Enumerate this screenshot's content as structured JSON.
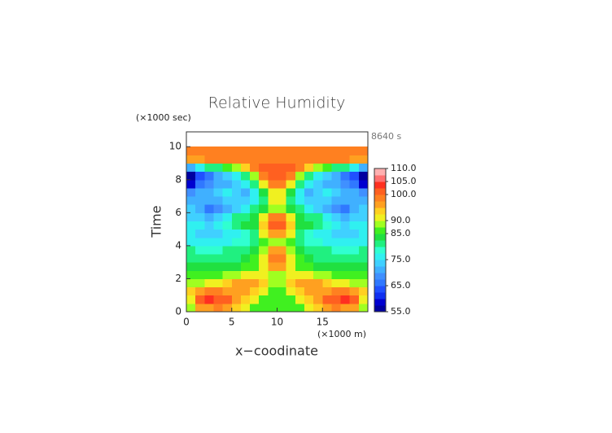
{
  "chart_data": {
    "type": "contour",
    "title": "Relative Humidity",
    "x_label": "x−coodinate",
    "y_label": "Time",
    "x_unit": "(×1000 m)",
    "y_unit": "(×1000 sec)",
    "annotation": "8640 s",
    "xlim": [
      0,
      20
    ],
    "ylim": [
      0,
      10.9
    ],
    "xticks": [
      0,
      5,
      10,
      15
    ],
    "yticks": [
      0,
      2,
      4,
      6,
      8,
      10
    ],
    "x": [
      0.5,
      1.5,
      2.5,
      3.5,
      4.5,
      5.5,
      6.5,
      7.5,
      8.5,
      9.5,
      10.5,
      11.5,
      12.5,
      13.5,
      14.5,
      15.5,
      16.5,
      17.5,
      18.5,
      19.5
    ],
    "y": [
      0.25,
      0.75,
      1.25,
      1.75,
      2.25,
      2.75,
      3.25,
      3.75,
      4.25,
      4.75,
      5.25,
      5.75,
      6.25,
      6.75,
      7.25,
      7.75,
      8.25,
      8.75,
      9.25,
      9.75
    ],
    "z": [
      [
        88,
        95,
        97,
        98,
        97,
        93,
        90,
        87,
        86,
        86,
        86,
        86,
        87,
        90,
        93,
        97,
        98,
        97,
        95,
        88
      ],
      [
        92,
        101,
        103,
        102,
        100,
        97,
        93,
        90,
        87,
        86,
        86,
        87,
        90,
        93,
        97,
        100,
        102,
        103,
        101,
        92
      ],
      [
        93,
        96,
        98,
        98,
        97,
        97,
        96,
        94,
        90,
        87,
        87,
        90,
        94,
        96,
        97,
        97,
        98,
        98,
        96,
        93
      ],
      [
        88,
        89,
        90,
        92,
        93,
        95,
        97,
        97,
        93,
        88,
        88,
        93,
        97,
        97,
        95,
        93,
        92,
        90,
        89,
        88
      ],
      [
        86,
        86,
        87,
        87,
        88,
        89,
        90,
        92,
        92,
        88,
        88,
        92,
        92,
        90,
        89,
        88,
        87,
        87,
        86,
        86
      ],
      [
        83,
        83,
        83,
        84,
        84,
        84,
        85,
        87,
        91,
        96,
        96,
        91,
        87,
        85,
        84,
        84,
        84,
        83,
        83,
        83
      ],
      [
        82,
        82,
        81,
        82,
        82,
        82,
        83,
        85,
        91,
        98,
        98,
        91,
        85,
        83,
        82,
        82,
        82,
        81,
        82,
        82
      ],
      [
        80,
        79,
        78,
        79,
        80,
        80,
        82,
        84,
        89,
        95,
        95,
        89,
        84,
        82,
        80,
        80,
        79,
        78,
        79,
        80
      ],
      [
        77,
        76,
        75,
        76,
        77,
        78,
        79,
        82,
        86,
        88,
        88,
        86,
        82,
        79,
        78,
        77,
        76,
        75,
        76,
        77
      ],
      [
        76,
        74,
        73,
        74,
        76,
        77,
        78,
        82,
        90,
        97,
        97,
        90,
        82,
        78,
        77,
        76,
        74,
        73,
        74,
        76
      ],
      [
        76,
        75,
        74,
        75,
        78,
        82,
        83,
        84,
        93,
        100,
        100,
        93,
        84,
        83,
        82,
        78,
        75,
        74,
        75,
        76
      ],
      [
        74,
        73,
        72,
        73,
        77,
        81,
        82,
        84,
        92,
        98,
        98,
        92,
        84,
        82,
        81,
        77,
        73,
        72,
        73,
        74
      ],
      [
        73,
        72,
        67,
        68,
        72,
        74,
        77,
        80,
        84,
        88,
        88,
        84,
        80,
        77,
        74,
        72,
        68,
        67,
        72,
        73
      ],
      [
        72,
        71,
        70,
        72,
        74,
        74,
        73,
        76,
        82,
        90,
        90,
        82,
        76,
        73,
        74,
        74,
        72,
        70,
        71,
        72
      ],
      [
        68,
        70,
        72,
        74,
        75,
        73,
        70,
        75,
        84,
        92,
        92,
        84,
        75,
        70,
        73,
        75,
        74,
        72,
        70,
        68
      ],
      [
        58,
        66,
        68,
        70,
        72,
        74,
        76,
        80,
        90,
        98,
        98,
        90,
        80,
        76,
        74,
        72,
        70,
        68,
        66,
        58
      ],
      [
        57,
        64,
        67,
        70,
        73,
        76,
        80,
        88,
        98,
        100,
        100,
        98,
        88,
        80,
        76,
        73,
        70,
        67,
        64,
        57
      ],
      [
        70,
        76,
        80,
        82,
        85,
        88,
        94,
        98,
        100,
        100,
        100,
        100,
        98,
        94,
        88,
        85,
        82,
        80,
        76,
        70
      ],
      [
        97,
        97,
        98,
        98,
        98,
        98,
        98,
        98,
        98,
        98,
        98,
        98,
        98,
        98,
        98,
        98,
        98,
        98,
        97,
        97
      ],
      [
        98,
        98,
        98,
        98,
        98,
        98,
        98,
        98,
        98,
        98,
        98,
        98,
        98,
        98,
        98,
        98,
        98,
        98,
        98,
        98
      ]
    ],
    "levels": [
      55,
      57.5,
      60,
      62.5,
      65,
      67.5,
      70,
      72.5,
      75,
      77.5,
      80,
      82.5,
      85,
      87.5,
      90,
      92.5,
      95,
      97.5,
      100,
      102.5,
      105,
      107.5,
      110
    ],
    "colors": [
      "#0000a0",
      "#0000d0",
      "#1030f0",
      "#2050ff",
      "#3078ff",
      "#4090ff",
      "#40b0ff",
      "#40d0ff",
      "#30f0f0",
      "#30ffd0",
      "#20f080",
      "#20e040",
      "#40f020",
      "#a0ff20",
      "#f0f020",
      "#ffd020",
      "#ffa020",
      "#ff8020",
      "#ff6020",
      "#ff3020",
      "#ff7070",
      "#ffb0b0"
    ],
    "colorbar_ticks": [
      {
        "value": 55,
        "label": "55.0"
      },
      {
        "value": 65,
        "label": "65.0"
      },
      {
        "value": 75,
        "label": "75.0"
      },
      {
        "value": 85,
        "label": "85.0"
      },
      {
        "value": 90,
        "label": "90.0"
      },
      {
        "value": 100,
        "label": "100.0"
      },
      {
        "value": 105,
        "label": "105.0"
      },
      {
        "value": 110,
        "label": "110.0"
      }
    ]
  }
}
